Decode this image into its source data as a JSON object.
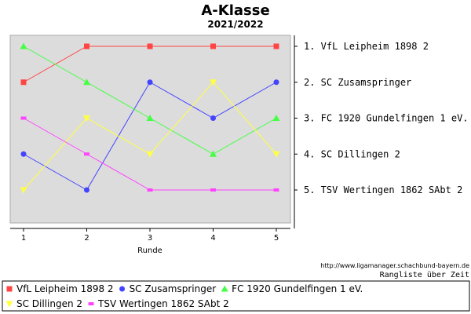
{
  "chart_data": {
    "type": "line",
    "title": "A-Klasse",
    "subtitle": "2021/2022",
    "xlabel": "Runde",
    "ylabel": "",
    "x": [
      1,
      2,
      3,
      4,
      5
    ],
    "ylim": [
      1,
      6
    ],
    "y_inverted": true,
    "grid": false,
    "legend_placement": "bottom",
    "right_labels": [
      "1. VfL Leipheim 1898   2",
      "2. SC Zusamspringer",
      "3. FC 1920 Gundelfingen 1 eV.",
      "4. SC Dillingen 2",
      "5. TSV Wertingen 1862 SAbt  2"
    ],
    "series": [
      {
        "name": "VfL Leipheim 1898   2",
        "values": [
          2,
          1,
          1,
          1,
          1
        ],
        "color": "#ff4444",
        "marker": "square"
      },
      {
        "name": "SC Zusamspringer",
        "values": [
          4,
          5,
          2,
          3,
          2
        ],
        "color": "#4444ff",
        "marker": "circle"
      },
      {
        "name": "FC 1920 Gundelfingen 1 eV.",
        "values": [
          1,
          2,
          3,
          4,
          3
        ],
        "color": "#44ff44",
        "marker": "triangle"
      },
      {
        "name": "SC Dillingen 2",
        "values": [
          5,
          3,
          4,
          2,
          4
        ],
        "color": "#ffff44",
        "marker": "triangle-down"
      },
      {
        "name": "TSV Wertingen 1862 SAbt  2",
        "values": [
          3,
          4,
          5,
          5,
          5
        ],
        "color": "#ff44ff",
        "marker": "dash"
      }
    ]
  },
  "source_url": "http://www.ligamanager.schachbund-bayern.de",
  "note": "Rangliste über Zeit",
  "colors": {
    "plot_background": "#dcdcdc"
  }
}
